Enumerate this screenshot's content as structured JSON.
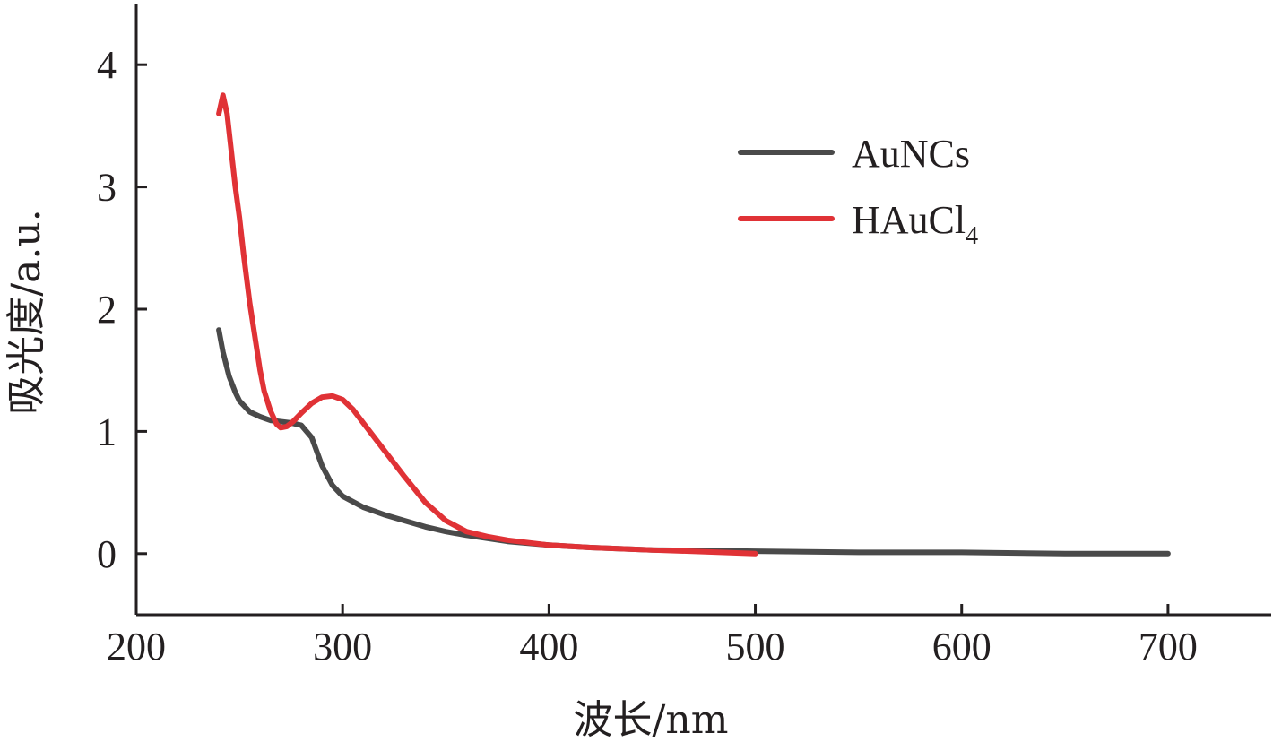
{
  "chart_data": {
    "type": "line",
    "xlabel": "波长/nm",
    "ylabel": "吸光度/a.u.",
    "xlim": [
      200,
      750
    ],
    "ylim": [
      -0.5,
      4.5
    ],
    "xticks": [
      200,
      300,
      400,
      500,
      600,
      700
    ],
    "yticks": [
      0,
      1,
      2,
      3,
      4
    ],
    "grid": false,
    "legend_position": "top-right",
    "series": [
      {
        "name": "AuNCs",
        "name_main": "AuNCs",
        "name_sub": "",
        "color": "#4a4a4a",
        "x": [
          240,
          242,
          245,
          248,
          250,
          255,
          260,
          265,
          270,
          275,
          280,
          285,
          290,
          295,
          300,
          310,
          320,
          330,
          340,
          350,
          360,
          380,
          400,
          420,
          450,
          500,
          550,
          600,
          650,
          700
        ],
        "y": [
          1.83,
          1.65,
          1.45,
          1.32,
          1.25,
          1.16,
          1.12,
          1.09,
          1.08,
          1.07,
          1.05,
          0.95,
          0.72,
          0.56,
          0.47,
          0.38,
          0.32,
          0.27,
          0.22,
          0.18,
          0.15,
          0.1,
          0.07,
          0.05,
          0.03,
          0.02,
          0.01,
          0.01,
          0.0,
          0.0
        ]
      },
      {
        "name": "HAuCl4",
        "name_main": "HAuCl",
        "name_sub": "4",
        "color": "#e03236",
        "x": [
          240,
          242,
          244,
          246,
          248,
          250,
          252,
          255,
          258,
          260,
          262,
          265,
          268,
          270,
          273,
          276,
          280,
          285,
          290,
          295,
          300,
          305,
          310,
          320,
          330,
          340,
          350,
          360,
          370,
          380,
          400,
          420,
          450,
          500
        ],
        "y": [
          3.6,
          3.75,
          3.6,
          3.3,
          3.0,
          2.75,
          2.45,
          2.05,
          1.72,
          1.5,
          1.33,
          1.17,
          1.06,
          1.03,
          1.04,
          1.08,
          1.15,
          1.23,
          1.28,
          1.29,
          1.26,
          1.18,
          1.07,
          0.85,
          0.63,
          0.42,
          0.27,
          0.18,
          0.14,
          0.11,
          0.07,
          0.05,
          0.03,
          0.0
        ]
      }
    ]
  }
}
